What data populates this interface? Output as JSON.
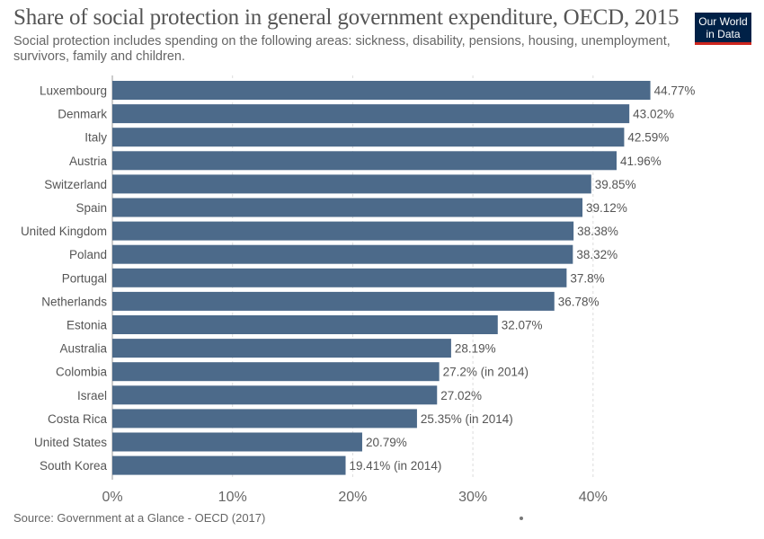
{
  "header": {
    "title": "Share of social protection in general government expenditure, OECD, 2015",
    "subtitle": "Social protection includes spending on the following areas: sickness, disability, pensions, housing, unemployment, survivors, family and children.",
    "logo_line1": "Our World",
    "logo_line2": "in Data"
  },
  "footer": {
    "source": "Source: Government at a Glance - OECD (2017)"
  },
  "colors": {
    "bar": "#4c6a8a",
    "logo_bg": "#002147",
    "logo_accent": "#ce261e"
  },
  "chart_data": {
    "type": "bar",
    "orientation": "horizontal",
    "title": "Share of social protection in general government expenditure, OECD, 2015",
    "categories": [
      "Luxembourg",
      "Denmark",
      "Italy",
      "Austria",
      "Switzerland",
      "Spain",
      "United Kingdom",
      "Poland",
      "Portugal",
      "Netherlands",
      "Estonia",
      "Australia",
      "Colombia",
      "Israel",
      "Costa Rica",
      "United States",
      "South Korea"
    ],
    "values": [
      44.77,
      43.02,
      42.59,
      41.96,
      39.85,
      39.12,
      38.38,
      38.32,
      37.8,
      36.78,
      32.07,
      28.19,
      27.2,
      27.02,
      25.35,
      20.79,
      19.41
    ],
    "value_labels": [
      "44.77%",
      "43.02%",
      "42.59%",
      "41.96%",
      "39.85%",
      "39.12%",
      "38.38%",
      "38.32%",
      "37.8%",
      "36.78%",
      "32.07%",
      "28.19%",
      "27.2% (in 2014)",
      "27.02%",
      "25.35% (in 2014)",
      "20.79%",
      "19.41% (in 2014)"
    ],
    "xlim": [
      0,
      45
    ],
    "x_ticks": [
      0,
      10,
      20,
      30,
      40
    ],
    "x_tick_labels": [
      "0%",
      "10%",
      "20%",
      "30%",
      "40%"
    ],
    "grid": true
  }
}
